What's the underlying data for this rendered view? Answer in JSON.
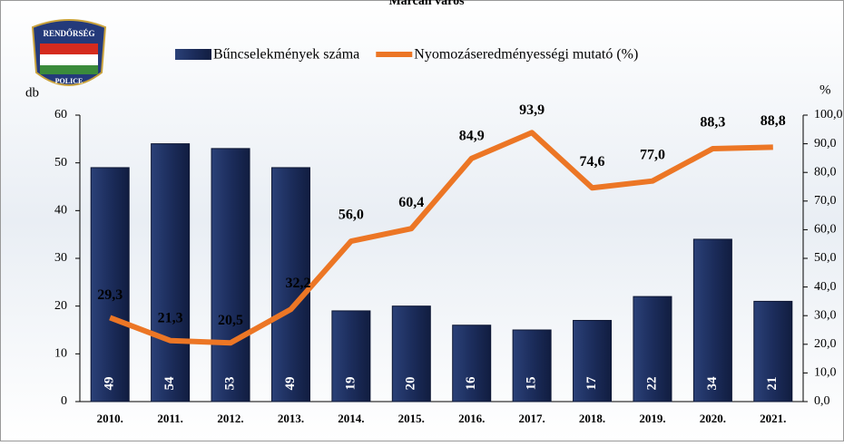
{
  "chart_data": {
    "type": "bar-line",
    "title": "Marcali város",
    "logo": {
      "top": "RENDŐRSÉG",
      "bottom": "POLICE"
    },
    "y_label": "db",
    "y2_label": "%",
    "categories": [
      "2010.",
      "2011.",
      "2012.",
      "2013.",
      "2014.",
      "2015.",
      "2016.",
      "2017.",
      "2018.",
      "2019.",
      "2020.",
      "2021."
    ],
    "series": [
      {
        "name": "Bűncselekmények száma",
        "type": "bar",
        "color": "#1c2d5c",
        "axis": "y",
        "values": [
          49,
          54,
          53,
          49,
          19,
          20,
          16,
          15,
          17,
          22,
          34,
          21
        ]
      },
      {
        "name": "Nyomozáseredményességi mutató (%)",
        "type": "line",
        "color": "#ec7625",
        "axis": "y2",
        "values": [
          29.3,
          21.3,
          20.5,
          32.2,
          56.0,
          60.4,
          84.9,
          93.9,
          74.6,
          77.0,
          88.3,
          88.8
        ],
        "value_labels": [
          "29,3",
          "21,3",
          "20,5",
          "32,2",
          "56,0",
          "60,4",
          "84,9",
          "93,9",
          "74,6",
          "77,0",
          "88,3",
          "88,8"
        ]
      }
    ],
    "ylim": [
      0,
      60
    ],
    "yticks": [
      0,
      10,
      20,
      30,
      40,
      50,
      60
    ],
    "y2lim": [
      0,
      100
    ],
    "y2ticks": [
      {
        "value": 0,
        "label": "0,0"
      },
      {
        "value": 10,
        "label": "10,0"
      },
      {
        "value": 20,
        "label": "20,0"
      },
      {
        "value": 30,
        "label": "30,0"
      },
      {
        "value": 40,
        "label": "40,0"
      },
      {
        "value": 50,
        "label": "50,0"
      },
      {
        "value": 60,
        "label": "60,0"
      },
      {
        "value": 70,
        "label": "70,0"
      },
      {
        "value": 80,
        "label": "80,0"
      },
      {
        "value": 90,
        "label": "90,0"
      },
      {
        "value": 100,
        "label": "100,0"
      }
    ]
  }
}
